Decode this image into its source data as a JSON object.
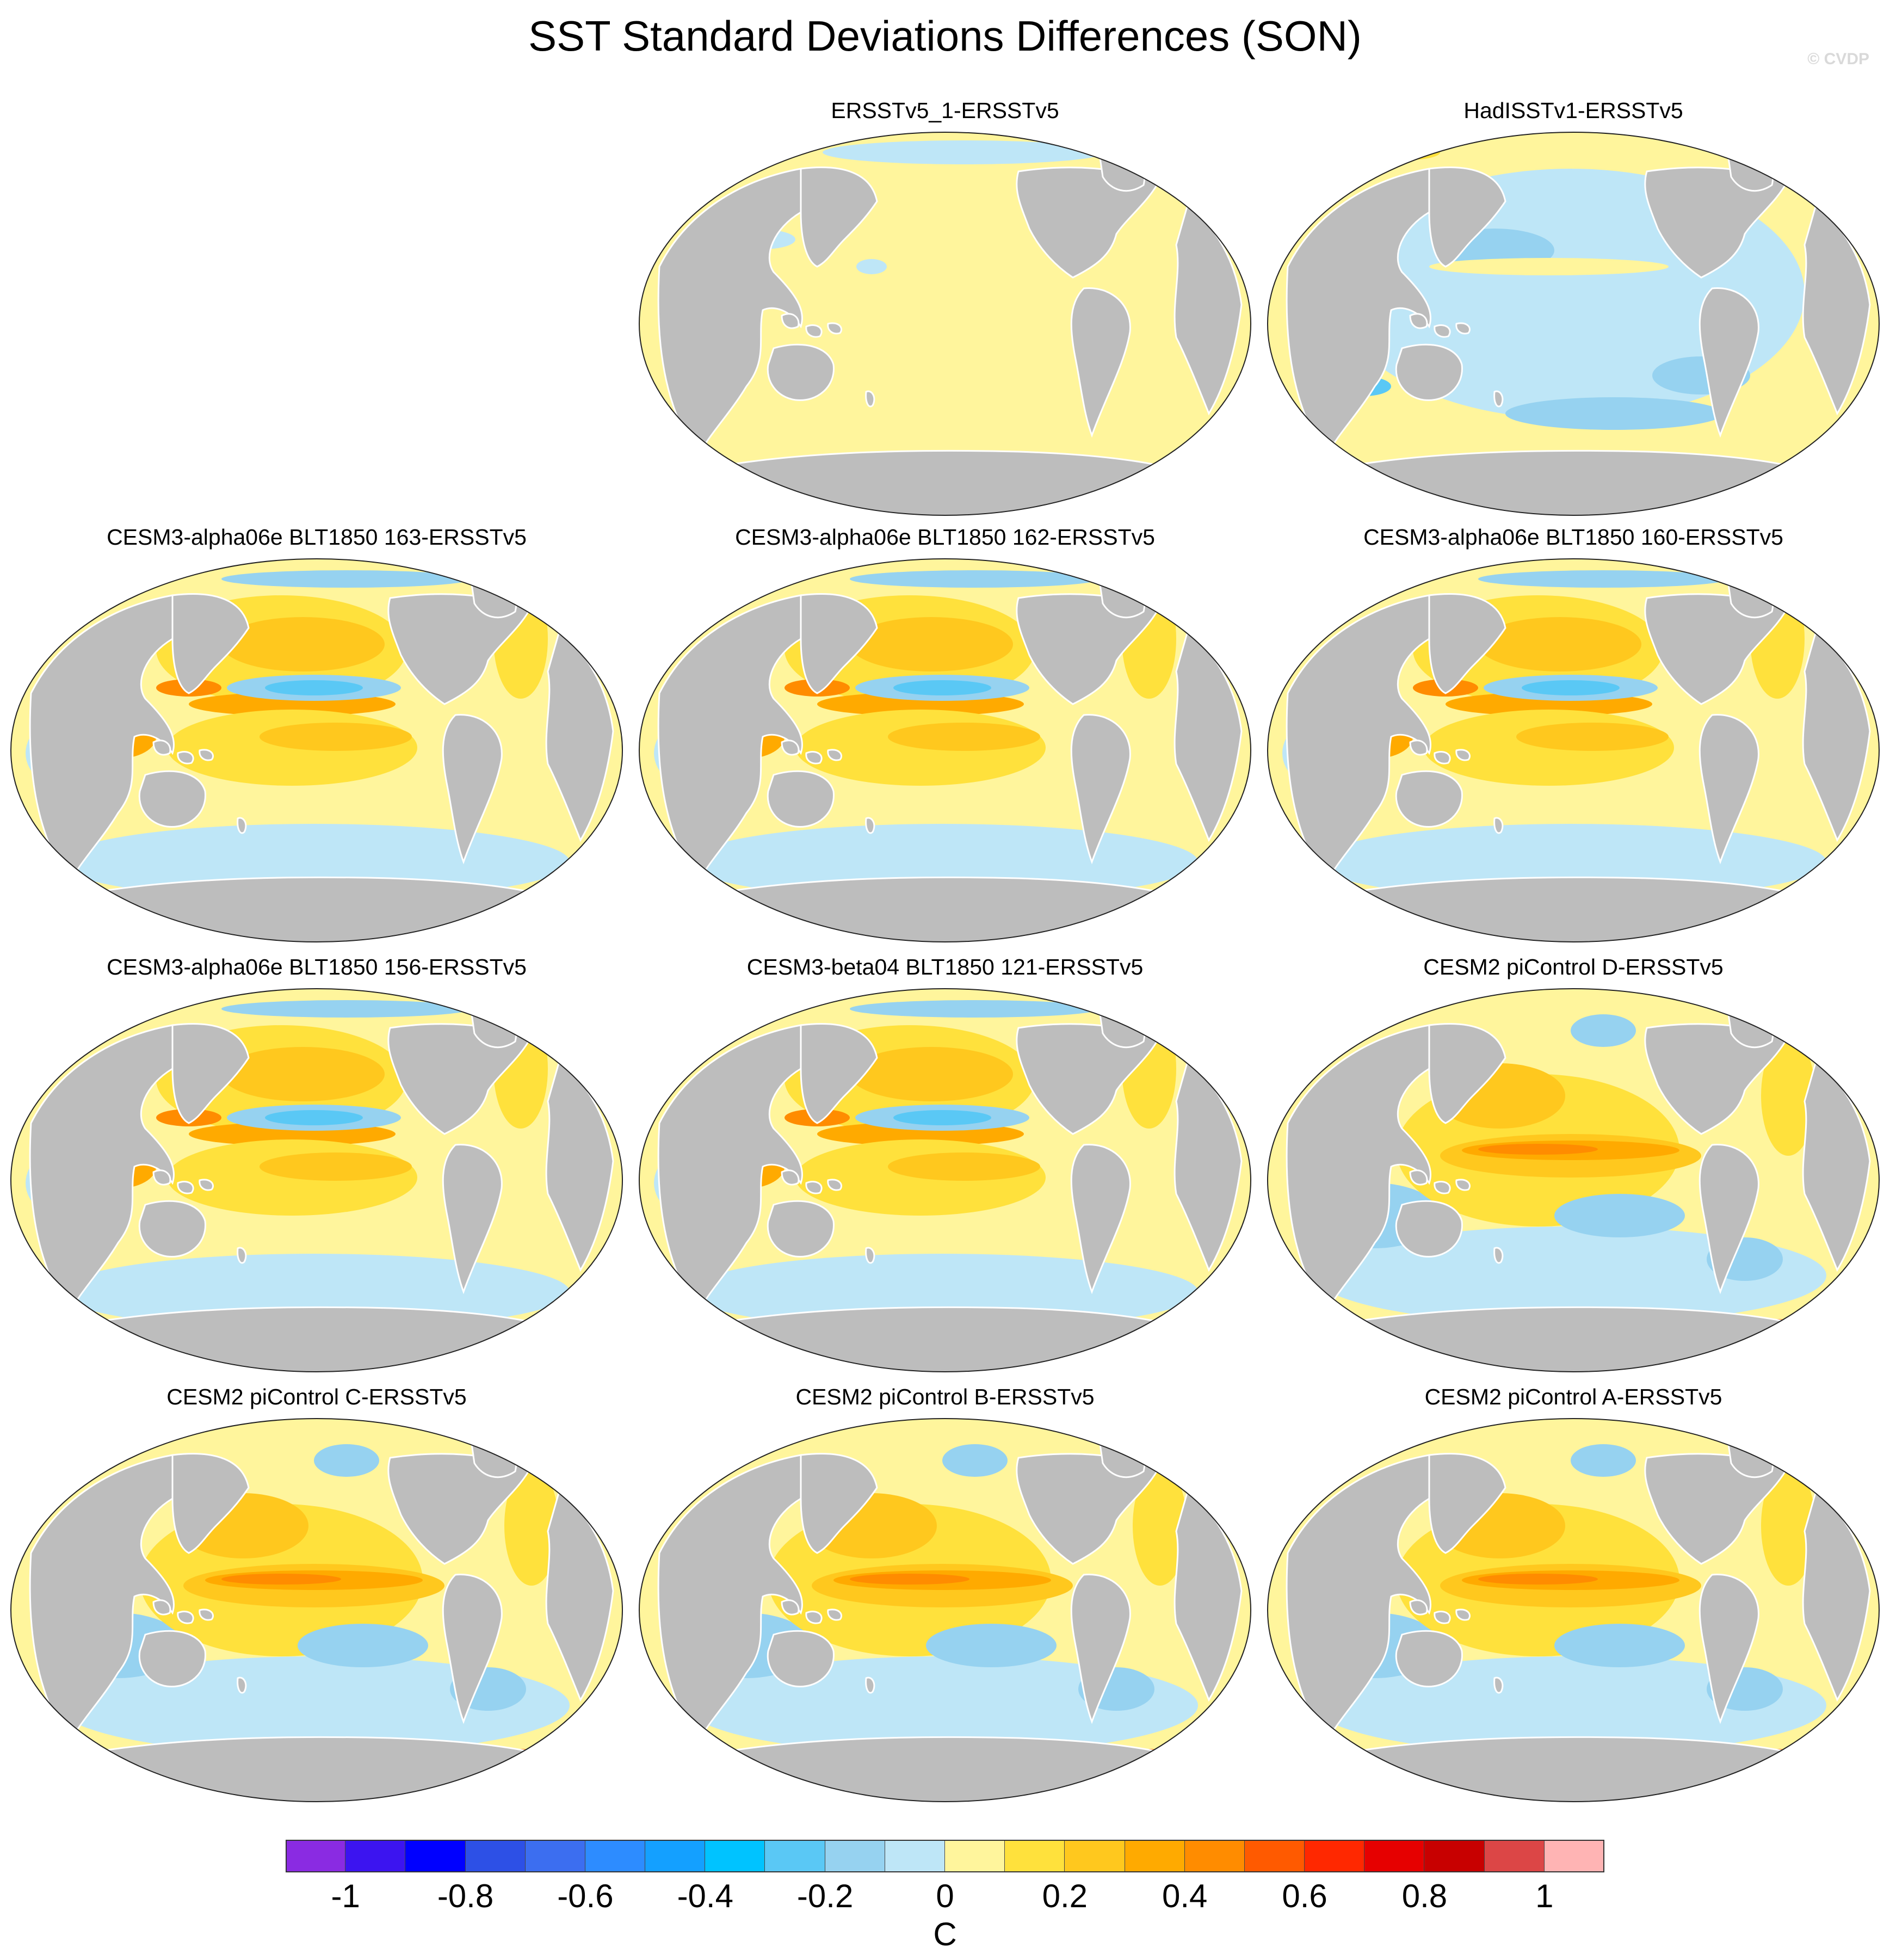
{
  "title": "SST Standard Deviations Differences (SON)",
  "credit": "© CVDP",
  "colors": {
    "land": "#bdbdbd",
    "ocean_background": "#fff59c",
    "coast": "#ffffff",
    "outline": "#222222"
  },
  "panels": [
    {
      "label": "ERSSTv5_1-ERSSTv5",
      "pattern": "neutral-positive"
    },
    {
      "label": "HadISSTv1-ERSSTv5",
      "pattern": "neutral-negative"
    },
    {
      "label": "CESM3-alpha06e BLT1850 163-ERSSTv5",
      "pattern": "model-mixed"
    },
    {
      "label": "CESM3-alpha06e BLT1850 162-ERSSTv5",
      "pattern": "model-mixed"
    },
    {
      "label": "CESM3-alpha06e BLT1850 160-ERSSTv5",
      "pattern": "model-mixed"
    },
    {
      "label": "CESM3-alpha06e BLT1850 156-ERSSTv5",
      "pattern": "model-mixed"
    },
    {
      "label": "CESM3-beta04 BLT1850 121-ERSSTv5",
      "pattern": "model-mixed"
    },
    {
      "label": "CESM2 piControl D-ERSSTv5",
      "pattern": "enso-strong"
    },
    {
      "label": "CESM2 piControl C-ERSSTv5",
      "pattern": "enso-strong"
    },
    {
      "label": "CESM2 piControl B-ERSSTv5",
      "pattern": "enso-strong"
    },
    {
      "label": "CESM2 piControl A-ERSSTv5",
      "pattern": "enso-strong"
    }
  ],
  "colorbar": {
    "units": "C",
    "tick_labels": [
      "-1",
      "-0.8",
      "-0.6",
      "-0.4",
      "-0.2",
      "0",
      "0.2",
      "0.4",
      "0.6",
      "0.8",
      "1"
    ],
    "tick_values": [
      -1,
      -0.8,
      -0.6,
      -0.4,
      -0.2,
      0,
      0.2,
      0.4,
      0.6,
      0.8,
      1
    ],
    "range": [
      -1.1,
      1.1
    ],
    "boxes": [
      "#8a2be2",
      "#3c14f0",
      "#0000ff",
      "#2d50e6",
      "#3c6ef0",
      "#2d8cff",
      "#14a0ff",
      "#00c3ff",
      "#5ac8f5",
      "#96d2f0",
      "#bee6f7",
      "#fff59c",
      "#ffe13c",
      "#ffc81e",
      "#ffaa00",
      "#ff8c00",
      "#ff5a00",
      "#ff2800",
      "#e60000",
      "#c80000",
      "#dc4646",
      "#ffb4b4"
    ]
  }
}
